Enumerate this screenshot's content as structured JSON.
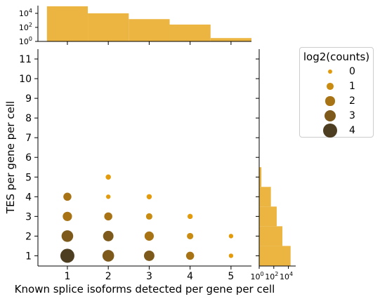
{
  "chart_data": {
    "type": "scatter",
    "xlabel": "Known splice isoforms detected per gene per cell",
    "ylabel": "TES per gene per cell",
    "x_ticks": [
      1,
      2,
      3,
      4,
      5
    ],
    "y_ticks": [
      1,
      2,
      3,
      4,
      5,
      6,
      7,
      8,
      9,
      10,
      11
    ],
    "xlim": [
      0.28,
      5.5
    ],
    "ylim": [
      0.48,
      11.5
    ],
    "points": [
      {
        "x": 1,
        "y": 1,
        "log2_counts": 4
      },
      {
        "x": 1,
        "y": 2,
        "log2_counts": 3
      },
      {
        "x": 1,
        "y": 3,
        "log2_counts": 2
      },
      {
        "x": 1,
        "y": 4,
        "log2_counts": 1.5
      },
      {
        "x": 2,
        "y": 1,
        "log2_counts": 3
      },
      {
        "x": 2,
        "y": 2,
        "log2_counts": 2.5
      },
      {
        "x": 2,
        "y": 3,
        "log2_counts": 1.5
      },
      {
        "x": 2,
        "y": 4,
        "log2_counts": 0
      },
      {
        "x": 2,
        "y": 5,
        "log2_counts": 0.3
      },
      {
        "x": 3,
        "y": 1,
        "log2_counts": 2.5
      },
      {
        "x": 3,
        "y": 2,
        "log2_counts": 2
      },
      {
        "x": 3,
        "y": 3,
        "log2_counts": 0.8
      },
      {
        "x": 3,
        "y": 4,
        "log2_counts": 0.3
      },
      {
        "x": 4,
        "y": 1,
        "log2_counts": 1.5
      },
      {
        "x": 4,
        "y": 2,
        "log2_counts": 0.8
      },
      {
        "x": 4,
        "y": 3,
        "log2_counts": 0.3
      },
      {
        "x": 5,
        "y": 1,
        "log2_counts": 0
      },
      {
        "x": 5,
        "y": 2,
        "log2_counts": 0
      }
    ],
    "top_histogram": {
      "scale": "log",
      "y_ticks": [
        "10^0",
        "10^2",
        "10^4"
      ],
      "bins": [
        [
          0.5,
          1.5
        ],
        [
          1.5,
          2.5
        ],
        [
          2.5,
          3.5
        ],
        [
          3.5,
          4.5
        ],
        [
          4.5,
          5.5
        ]
      ],
      "counts": [
        100000,
        10000,
        1500,
        250,
        3
      ]
    },
    "right_histogram": {
      "scale": "log",
      "x_ticks": [
        "10^0",
        "10^2",
        "10^4"
      ],
      "bins": [
        [
          0.5,
          1.5
        ],
        [
          1.5,
          2.5
        ],
        [
          2.5,
          3.5
        ],
        [
          3.5,
          4.5
        ],
        [
          4.5,
          5.5
        ]
      ],
      "counts": [
        20000,
        1500,
        250,
        40,
        2
      ]
    },
    "legend": {
      "title": "log2(counts)",
      "entries": [
        "0",
        "1",
        "2",
        "3",
        "4"
      ],
      "placement": "right"
    },
    "colors": {
      "hist": "#ecb541",
      "c0": "#e39b0c",
      "c1": "#c98b10",
      "c2": "#a77314",
      "c3": "#7d5a1b",
      "c4": "#4d3e22"
    }
  }
}
